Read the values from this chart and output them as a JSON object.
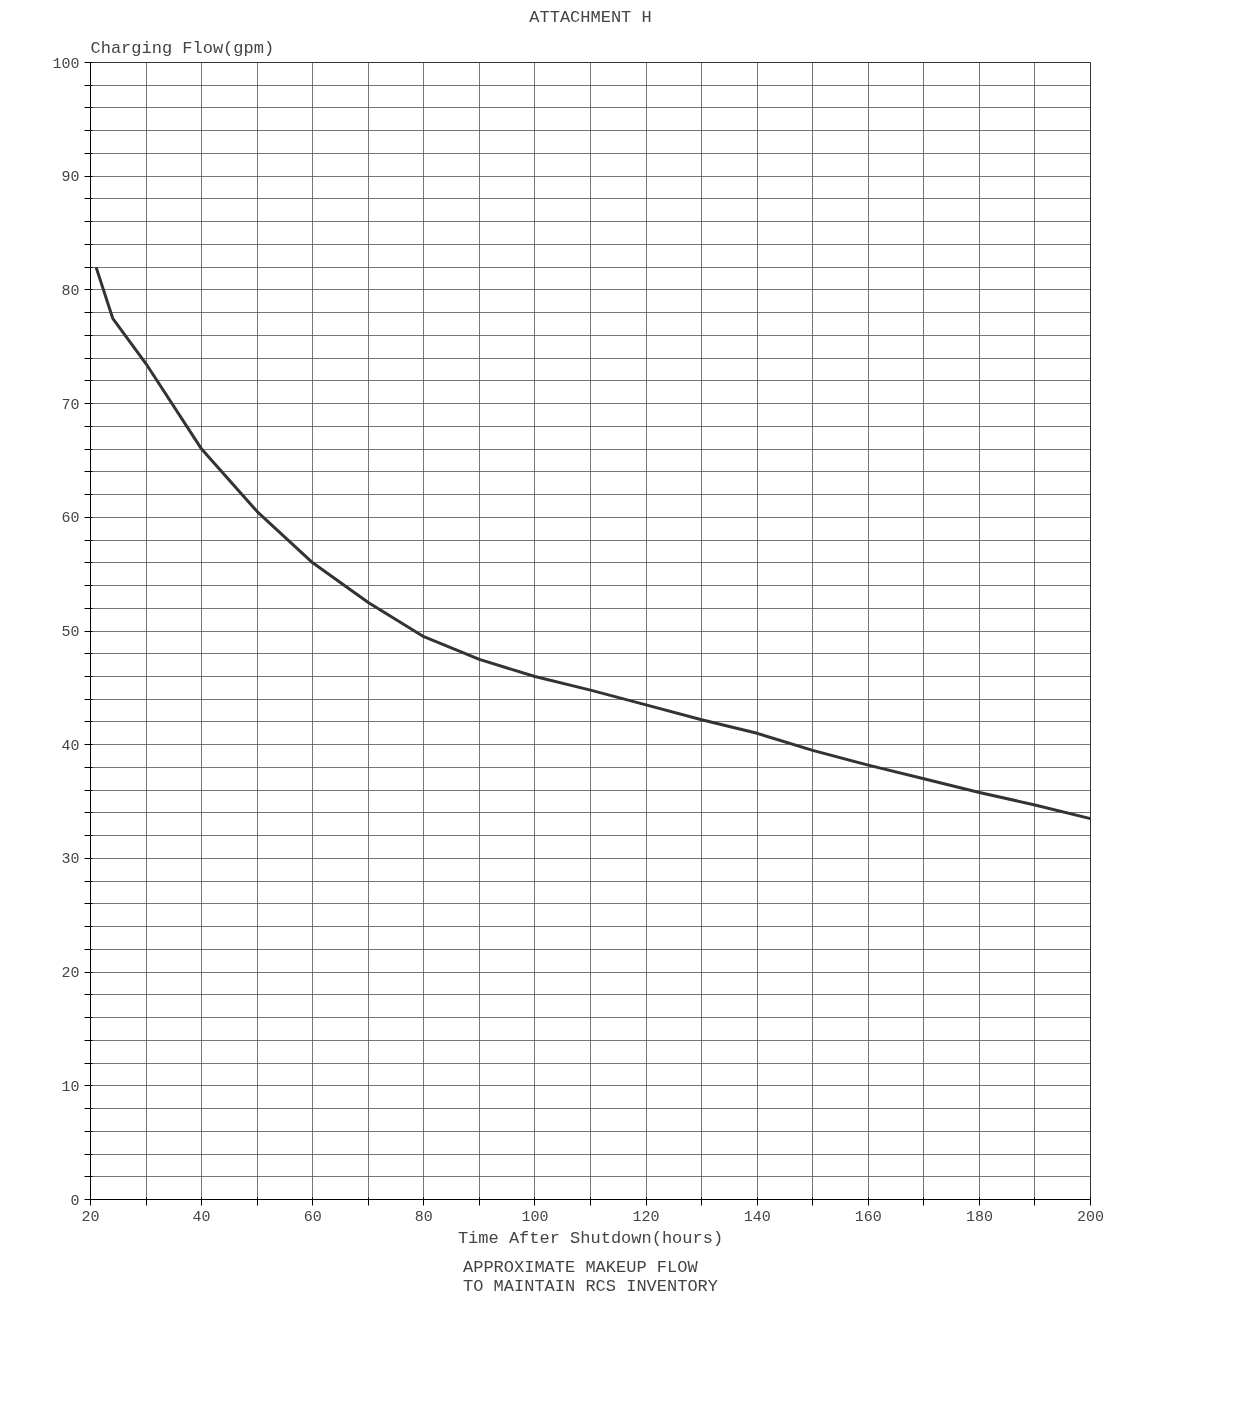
{
  "chart_data": {
    "type": "line",
    "title": "ATTACHMENT H",
    "ylabel": "Charging Flow(gpm)",
    "xlabel": "Time After Shutdown(hours)",
    "annotations": [
      "APPROXIMATE MAKEUP FLOW\nTO MAINTAIN RCS INVENTORY"
    ],
    "series": [
      {
        "color": "#333333",
        "x": [
          21,
          24,
          30,
          40,
          50,
          60,
          70,
          80,
          90,
          100,
          110,
          120,
          130,
          140,
          150,
          160,
          170,
          180,
          190,
          200
        ],
        "values": [
          82,
          77.5,
          73.5,
          66,
          60.5,
          56,
          52.5,
          49.5,
          47.5,
          46,
          44.8,
          43.5,
          42.2,
          41,
          39.5,
          38.2,
          37,
          35.8,
          34.7,
          33.5
        ]
      }
    ],
    "xlim": [
      20,
      200
    ],
    "ylim": [
      0,
      100
    ],
    "xticks": [
      20,
      {
        "value": 30,
        "label": null
      },
      40,
      {
        "value": 50,
        "label": null
      },
      60,
      {
        "value": 70,
        "label": null
      },
      80,
      {
        "value": 90,
        "label": null
      },
      100,
      {
        "value": 110,
        "label": null
      },
      120,
      {
        "value": 130,
        "label": null
      },
      140,
      {
        "value": 150,
        "label": null
      },
      160,
      {
        "value": 170,
        "label": null
      },
      180,
      {
        "value": 190,
        "label": null
      },
      200
    ],
    "yticks": [
      0,
      {
        "value": 2,
        "label": null
      },
      {
        "value": 4,
        "label": null
      },
      {
        "value": 6,
        "label": null
      },
      {
        "value": 8,
        "label": null
      },
      10,
      {
        "value": 12,
        "label": null
      },
      {
        "value": 14,
        "label": null
      },
      {
        "value": 16,
        "label": null
      },
      {
        "value": 18,
        "label": null
      },
      20,
      {
        "value": 22,
        "label": null
      },
      {
        "value": 24,
        "label": null
      },
      {
        "value": 26,
        "label": null
      },
      {
        "value": 28,
        "label": null
      },
      30,
      {
        "value": 32,
        "label": null
      },
      {
        "value": 34,
        "label": null
      },
      {
        "value": 36,
        "label": null
      },
      {
        "value": 38,
        "label": null
      },
      40,
      {
        "value": 42,
        "label": null
      },
      {
        "value": 44,
        "label": null
      },
      {
        "value": 46,
        "label": null
      },
      {
        "value": 48,
        "label": null
      },
      50,
      {
        "value": 52,
        "label": null
      },
      {
        "value": 54,
        "label": null
      },
      {
        "value": 56,
        "label": null
      },
      {
        "value": 58,
        "label": null
      },
      60,
      {
        "value": 62,
        "label": null
      },
      {
        "value": 64,
        "label": null
      },
      {
        "value": 66,
        "label": null
      },
      {
        "value": 68,
        "label": null
      },
      70,
      {
        "value": 72,
        "label": null
      },
      {
        "value": 74,
        "label": null
      },
      {
        "value": 76,
        "label": null
      },
      {
        "value": 78,
        "label": null
      },
      80,
      {
        "value": 82,
        "label": null
      },
      {
        "value": 84,
        "label": null
      },
      {
        "value": 86,
        "label": null
      },
      {
        "value": 88,
        "label": null
      },
      90,
      {
        "value": 92,
        "label": null
      },
      {
        "value": 94,
        "label": null
      },
      {
        "value": 96,
        "label": null
      },
      {
        "value": 98,
        "label": null
      },
      100
    ],
    "grid": true,
    "line_style": "solid",
    "marker": "none"
  }
}
